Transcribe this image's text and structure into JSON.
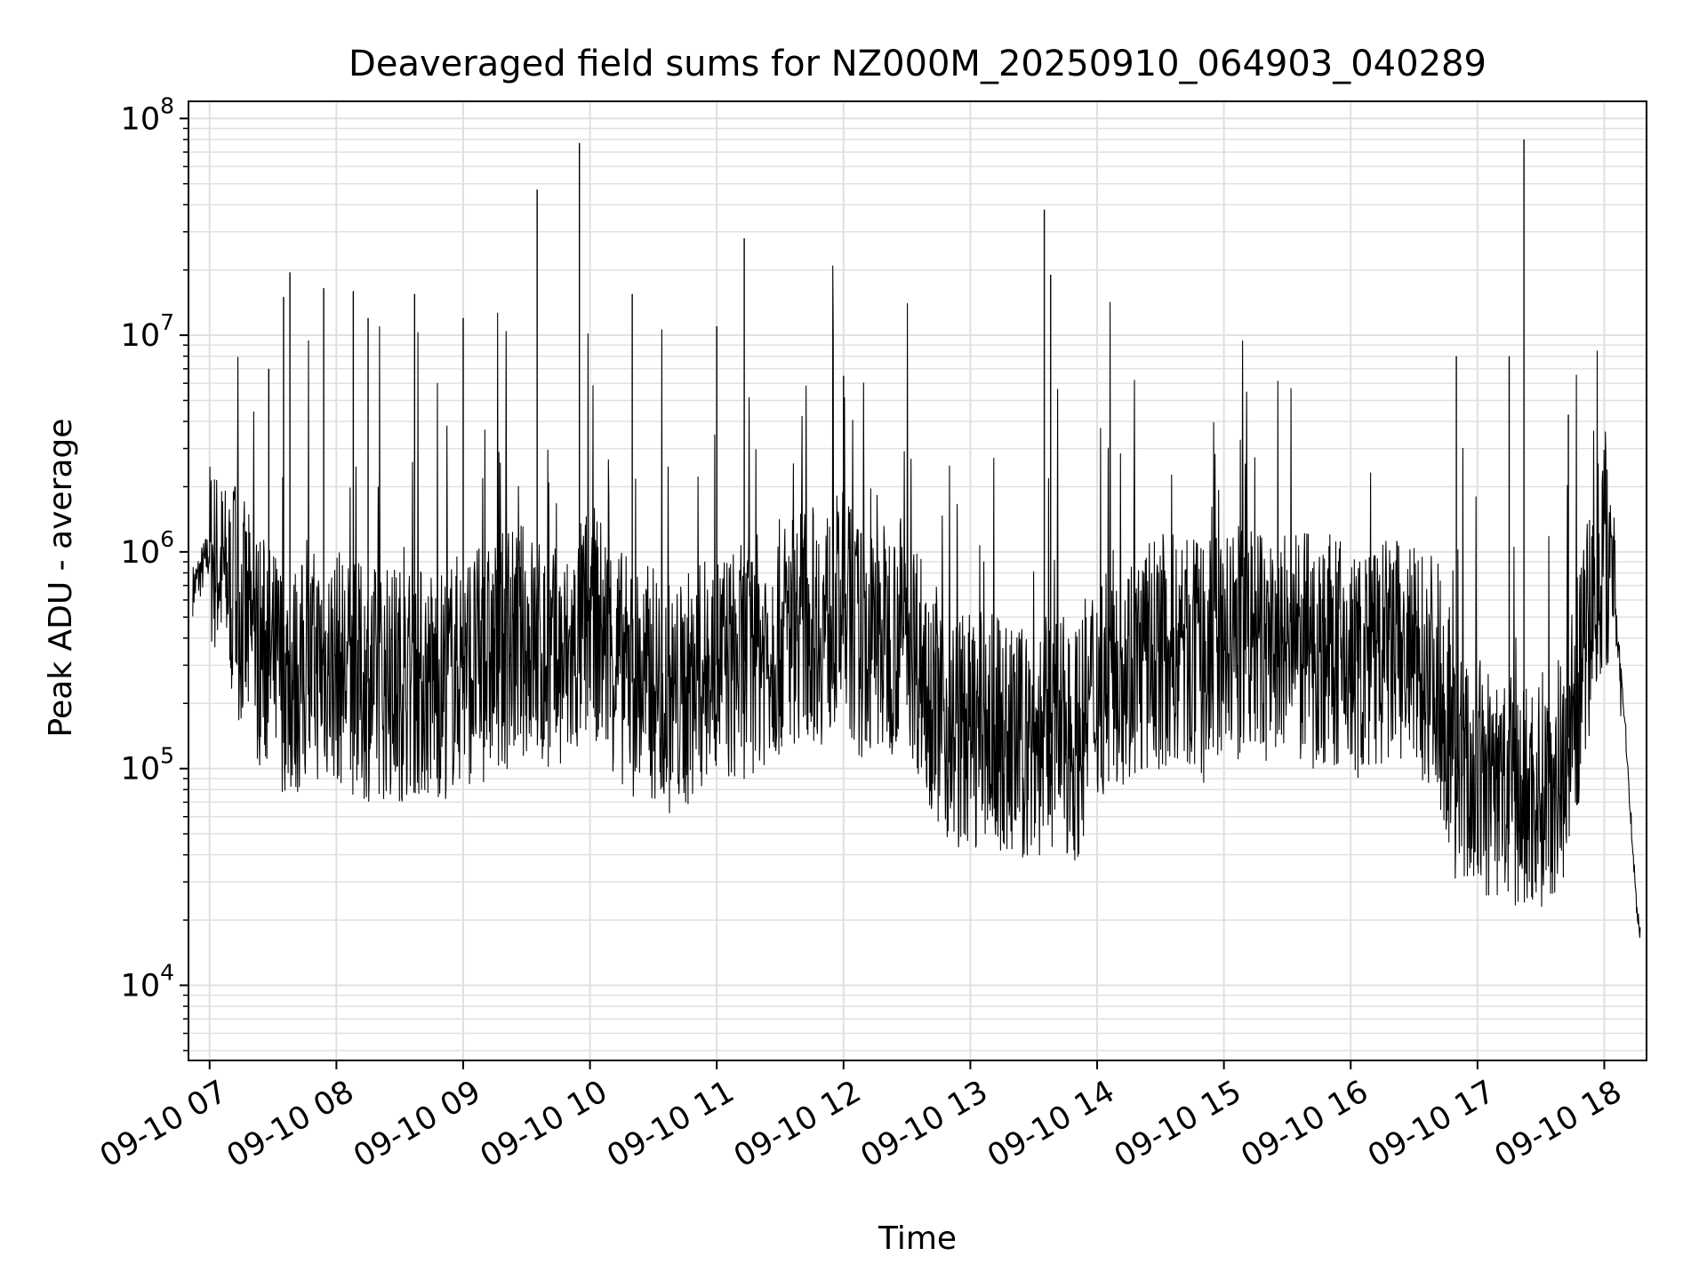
{
  "chart_data": {
    "type": "line",
    "title": "Deaveraged field sums for NZ000M_20250910_064903_040289",
    "xlabel": "Time",
    "ylabel": "Peak ADU - average",
    "y_scale": "log",
    "ylim": [
      4500,
      120000000
    ],
    "xlim": [
      "2025-09-10 06:50",
      "2025-09-10 18:20"
    ],
    "grid": true,
    "grid_minor": true,
    "line_color": "#000000",
    "grid_color": "#e0e0e0",
    "x_ticks": [
      {
        "label": "09-10 07",
        "value": "2025-09-10 07:00"
      },
      {
        "label": "09-10 08",
        "value": "2025-09-10 08:00"
      },
      {
        "label": "09-10 09",
        "value": "2025-09-10 09:00"
      },
      {
        "label": "09-10 10",
        "value": "2025-09-10 10:00"
      },
      {
        "label": "09-10 11",
        "value": "2025-09-10 11:00"
      },
      {
        "label": "09-10 12",
        "value": "2025-09-10 12:00"
      },
      {
        "label": "09-10 13",
        "value": "2025-09-10 13:00"
      },
      {
        "label": "09-10 14",
        "value": "2025-09-10 14:00"
      },
      {
        "label": "09-10 15",
        "value": "2025-09-10 15:00"
      },
      {
        "label": "09-10 16",
        "value": "2025-09-10 16:00"
      },
      {
        "label": "09-10 17",
        "value": "2025-09-10 17:00"
      },
      {
        "label": "09-10 18",
        "value": "2025-09-10 18:00"
      }
    ],
    "y_ticks": [
      {
        "base": "10",
        "exp": "4",
        "value": 10000
      },
      {
        "base": "10",
        "exp": "5",
        "value": 100000
      },
      {
        "base": "10",
        "exp": "6",
        "value": 1000000
      },
      {
        "base": "10",
        "exp": "7",
        "value": 10000000
      },
      {
        "base": "10",
        "exp": "8",
        "value": 100000000
      }
    ],
    "series": [
      {
        "x": [
          "2025-09-10 06:50",
          "2025-09-10 07:00",
          "2025-09-10 07:10",
          "2025-09-10 07:20",
          "2025-09-10 07:30",
          "2025-09-10 07:40",
          "2025-09-10 07:50",
          "2025-09-10 08:00",
          "2025-09-10 08:10",
          "2025-09-10 08:20",
          "2025-09-10 08:30",
          "2025-09-10 08:40",
          "2025-09-10 08:50",
          "2025-09-10 09:00",
          "2025-09-10 09:10",
          "2025-09-10 09:20",
          "2025-09-10 09:30",
          "2025-09-10 09:40",
          "2025-09-10 09:50",
          "2025-09-10 10:00",
          "2025-09-10 10:10",
          "2025-09-10 10:20",
          "2025-09-10 10:30",
          "2025-09-10 10:40",
          "2025-09-10 10:50",
          "2025-09-10 11:00",
          "2025-09-10 11:10",
          "2025-09-10 11:20",
          "2025-09-10 11:30",
          "2025-09-10 11:40",
          "2025-09-10 11:50",
          "2025-09-10 12:00",
          "2025-09-10 12:10",
          "2025-09-10 12:20",
          "2025-09-10 12:30",
          "2025-09-10 12:40",
          "2025-09-10 12:50",
          "2025-09-10 13:00",
          "2025-09-10 13:10",
          "2025-09-10 13:20",
          "2025-09-10 13:30",
          "2025-09-10 13:40",
          "2025-09-10 13:50",
          "2025-09-10 14:00",
          "2025-09-10 14:10",
          "2025-09-10 14:20",
          "2025-09-10 14:30",
          "2025-09-10 14:40",
          "2025-09-10 14:50",
          "2025-09-10 15:00",
          "2025-09-10 15:10",
          "2025-09-10 15:20",
          "2025-09-10 15:30",
          "2025-09-10 15:40",
          "2025-09-10 15:50",
          "2025-09-10 16:00",
          "2025-09-10 16:10",
          "2025-09-10 16:20",
          "2025-09-10 16:30",
          "2025-09-10 16:40",
          "2025-09-10 16:50",
          "2025-09-10 17:00",
          "2025-09-10 17:10",
          "2025-09-10 17:20",
          "2025-09-10 17:30",
          "2025-09-10 17:40",
          "2025-09-10 17:50",
          "2025-09-10 18:00",
          "2025-09-10 18:05",
          "2025-09-10 18:10",
          "2025-09-10 18:15",
          "2025-09-10 18:20"
        ],
        "y": [
          600000,
          1000000,
          700000,
          400000,
          300000,
          250000,
          300000,
          300000,
          250000,
          250000,
          250000,
          250000,
          250000,
          300000,
          300000,
          350000,
          400000,
          300000,
          300000,
          500000,
          350000,
          250000,
          250000,
          200000,
          250000,
          300000,
          300000,
          350000,
          400000,
          500000,
          450000,
          550000,
          350000,
          400000,
          450000,
          250000,
          150000,
          150000,
          150000,
          130000,
          130000,
          150000,
          130000,
          250000,
          300000,
          300000,
          350000,
          350000,
          300000,
          350000,
          400000,
          350000,
          350000,
          350000,
          350000,
          300000,
          300000,
          350000,
          300000,
          300000,
          100000,
          90000,
          80000,
          70000,
          80000,
          100000,
          300000,
          1200000,
          700000,
          150000,
          25000,
          10000
        ],
        "spikes": [
          {
            "x": "2025-09-10 07:28",
            "y": 7000000
          },
          {
            "x": "2025-09-10 07:35",
            "y": 15000000
          },
          {
            "x": "2025-09-10 07:38",
            "y": 19500000
          },
          {
            "x": "2025-09-10 07:54",
            "y": 16500000
          },
          {
            "x": "2025-09-10 08:08",
            "y": 16000000
          },
          {
            "x": "2025-09-10 08:15",
            "y": 12000000
          },
          {
            "x": "2025-09-10 08:37",
            "y": 15500000
          },
          {
            "x": "2025-09-10 09:00",
            "y": 12000000
          },
          {
            "x": "2025-09-10 09:35",
            "y": 47000000
          },
          {
            "x": "2025-09-10 09:55",
            "y": 77000000
          },
          {
            "x": "2025-09-10 10:20",
            "y": 15500000
          },
          {
            "x": "2025-09-10 11:00",
            "y": 11000000
          },
          {
            "x": "2025-09-10 11:13",
            "y": 28000000
          },
          {
            "x": "2025-09-10 12:00",
            "y": 6500000
          },
          {
            "x": "2025-09-10 13:35",
            "y": 38000000
          },
          {
            "x": "2025-09-10 13:38",
            "y": 19000000
          },
          {
            "x": "2025-09-10 16:50",
            "y": 8000000
          },
          {
            "x": "2025-09-10 17:15",
            "y": 8000000
          },
          {
            "x": "2025-09-10 17:22",
            "y": 80000000
          },
          {
            "x": "2025-09-10 17:43",
            "y": 4300000
          }
        ]
      }
    ]
  }
}
